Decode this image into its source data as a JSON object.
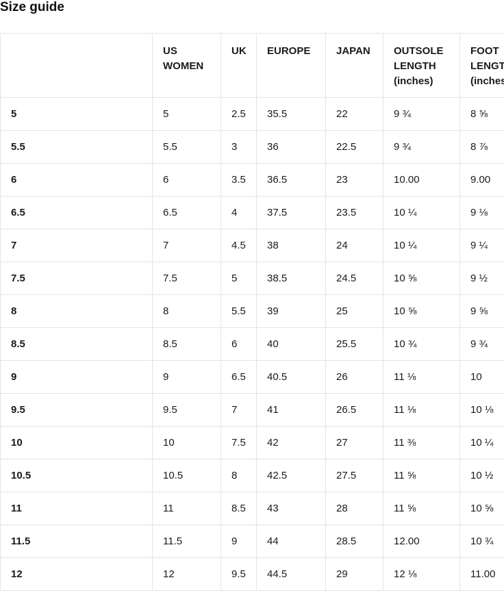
{
  "page_title": "Size guide",
  "colors": {
    "background": "#ffffff",
    "text": "#1a1a1a",
    "table_border": "#e4e4e4"
  },
  "table": {
    "columns": [
      {
        "key": "size",
        "label": ""
      },
      {
        "key": "us_women",
        "label": "US WOMEN"
      },
      {
        "key": "uk",
        "label": "UK"
      },
      {
        "key": "europe",
        "label": "EUROPE"
      },
      {
        "key": "japan",
        "label": "JAPAN"
      },
      {
        "key": "outsole_length",
        "label": "OUTSOLE LENGTH (inches)"
      },
      {
        "key": "foot_length",
        "label": "FOOT LENGTH (inches)"
      }
    ],
    "rows": [
      [
        "5",
        "5",
        "2.5",
        "35.5",
        "22",
        "9 ¾",
        "8 ⅝"
      ],
      [
        "5.5",
        "5.5",
        "3",
        "36",
        "22.5",
        "9 ¾",
        "8 ⅞"
      ],
      [
        "6",
        "6",
        "3.5",
        "36.5",
        "23",
        "10.00",
        "9.00"
      ],
      [
        "6.5",
        "6.5",
        "4",
        "37.5",
        "23.5",
        "10 ¼",
        "9 ⅛"
      ],
      [
        "7",
        "7",
        "4.5",
        "38",
        "24",
        "10 ¼",
        "9 ¼"
      ],
      [
        "7.5",
        "7.5",
        "5",
        "38.5",
        "24.5",
        "10 ⅝",
        "9 ½"
      ],
      [
        "8",
        "8",
        "5.5",
        "39",
        "25",
        "10 ⅝",
        "9 ⅝"
      ],
      [
        "8.5",
        "8.5",
        "6",
        "40",
        "25.5",
        "10 ¾",
        "9 ¾"
      ],
      [
        "9",
        "9",
        "6.5",
        "40.5",
        "26",
        "11 ⅛",
        "10"
      ],
      [
        "9.5",
        "9.5",
        "7",
        "41",
        "26.5",
        "11 ⅛",
        "10 ⅛"
      ],
      [
        "10",
        "10",
        "7.5",
        "42",
        "27",
        "11 ⅜",
        "10 ¼"
      ],
      [
        "10.5",
        "10.5",
        "8",
        "42.5",
        "27.5",
        "11 ⅝",
        "10 ½"
      ],
      [
        "11",
        "11",
        "8.5",
        "43",
        "28",
        "11 ⅝",
        "10 ⅝"
      ],
      [
        "11.5",
        "11.5",
        "9",
        "44",
        "28.5",
        "12.00",
        "10 ¾"
      ],
      [
        "12",
        "12",
        "9.5",
        "44.5",
        "29",
        "12 ⅛",
        "11.00"
      ]
    ]
  }
}
